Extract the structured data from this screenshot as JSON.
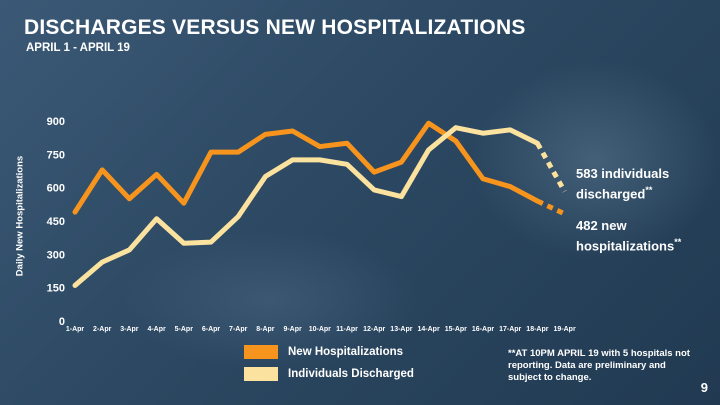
{
  "title": "DISCHARGES VERSUS NEW HOSPITALIZATIONS",
  "subtitle": "APRIL 1 - APRIL 19",
  "footnote": "**AT 10PM APRIL 19 with 5 hospitals not reporting. Data are preliminary and subject to change.",
  "page_number": "9",
  "annotations": {
    "discharged": {
      "line1": "583 individuals",
      "line2": "discharged",
      "mark": "**"
    },
    "new": {
      "line1": "482 new",
      "line2": "hospitalizations",
      "mark": "**"
    }
  },
  "legend": [
    {
      "label": "New Hospitalizations",
      "color": "#f7941d"
    },
    {
      "label": "Individuals Discharged",
      "color": "#fbe29f"
    }
  ],
  "chart_data": {
    "type": "line",
    "title": "DISCHARGES VERSUS NEW HOSPITALIZATIONS",
    "xlabel": "",
    "ylabel": "Daily New Hospitalizations",
    "ylim": [
      0,
      900
    ],
    "yticks": [
      0,
      150,
      300,
      450,
      600,
      750,
      900
    ],
    "categories": [
      "1-Apr",
      "2-Apr",
      "3-Apr",
      "4-Apr",
      "5-Apr",
      "6-Apr",
      "7-Apr",
      "8-Apr",
      "9-Apr",
      "10-Apr",
      "11-Apr",
      "12-Apr",
      "13-Apr",
      "14-Apr",
      "15-Apr",
      "16-Apr",
      "17-Apr",
      "18-Apr",
      "19-Apr"
    ],
    "series": [
      {
        "name": "New Hospitalizations",
        "color": "#f7941d",
        "values": [
          490,
          680,
          550,
          660,
          530,
          760,
          760,
          840,
          855,
          785,
          800,
          670,
          715,
          890,
          810,
          640,
          605,
          540,
          482
        ],
        "last_point_preliminary": true
      },
      {
        "name": "Individuals Discharged",
        "color": "#fbe29f",
        "values": [
          160,
          265,
          320,
          460,
          350,
          355,
          470,
          650,
          725,
          725,
          705,
          590,
          560,
          770,
          870,
          845,
          860,
          800,
          583
        ],
        "last_point_preliminary": true
      }
    ],
    "grid": false,
    "legend_position": "bottom"
  }
}
